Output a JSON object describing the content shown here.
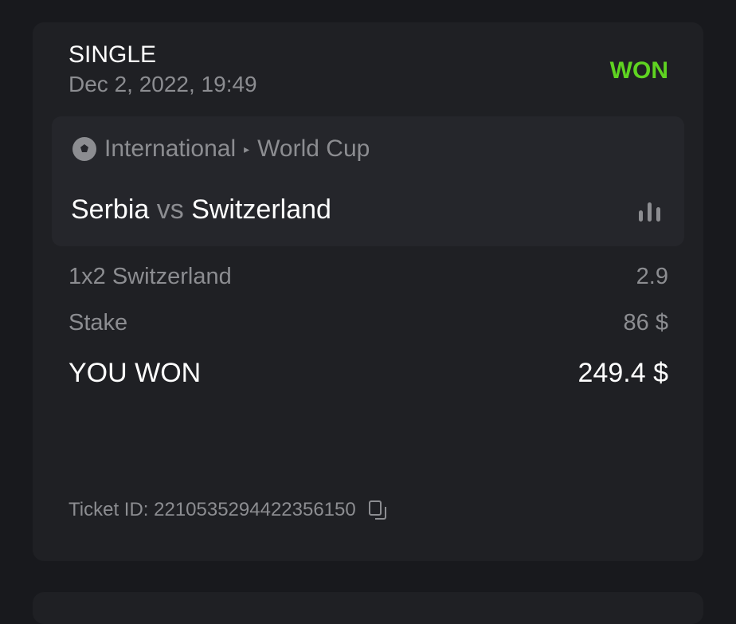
{
  "bet": {
    "type": "SINGLE",
    "date": "Dec 2, 2022, 19:49",
    "status": "WON",
    "status_color": "#5fd321",
    "event": {
      "sport_icon": "soccer-ball-icon",
      "category": "International",
      "separator": "▸",
      "league": "World Cup",
      "home": "Serbia",
      "vs": "vs",
      "away": "Switzerland",
      "stats_icon": "bar-chart-icon"
    },
    "selection": {
      "label": "1x2 Switzerland",
      "odds": "2.9"
    },
    "stake": {
      "label": "Stake",
      "value": "86 $"
    },
    "payout": {
      "label": "YOU WON",
      "value": "249.4 $"
    },
    "ticket": {
      "label": "Ticket ID: 2210535294422356150",
      "copy_icon": "copy-icon"
    }
  }
}
